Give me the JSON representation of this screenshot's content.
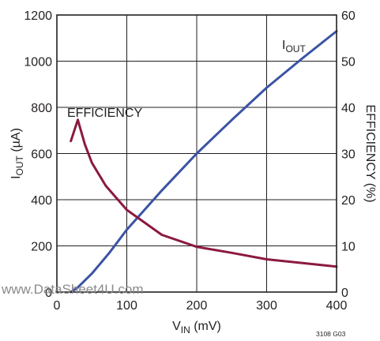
{
  "chart_data": {
    "type": "line",
    "xlabel": {
      "main": "V",
      "sub": "IN",
      "unit": " (mV)"
    },
    "ylabel_left": {
      "main": "I",
      "sub": "OUT",
      "unit": " (µA)"
    },
    "ylabel_right": "EFFICIENCY (%)",
    "xlim": [
      0,
      400
    ],
    "ylim_left": [
      0,
      1200
    ],
    "ylim_right": [
      0,
      60
    ],
    "x_ticks": [
      "0",
      "100",
      "200",
      "300",
      "400"
    ],
    "y_left_ticks": [
      "0",
      "200",
      "400",
      "600",
      "800",
      "1000",
      "1200"
    ],
    "y_right_ticks": [
      "0",
      "10",
      "20",
      "30",
      "40",
      "50",
      "60"
    ],
    "grid": true,
    "series": [
      {
        "name": "IOUT",
        "axis": "left",
        "color": "#3a53a4",
        "label": {
          "main": "I",
          "sub": "OUT"
        },
        "x": [
          20,
          30,
          50,
          75,
          100,
          150,
          200,
          250,
          300,
          350,
          400
        ],
        "y": [
          0,
          20,
          80,
          170,
          270,
          440,
          600,
          745,
          885,
          1010,
          1130
        ]
      },
      {
        "name": "EFFICIENCY",
        "axis": "right",
        "color": "#8b1a3e",
        "label": {
          "main": "EFFICIENCY"
        },
        "x": [
          20,
          30,
          40,
          50,
          70,
          100,
          150,
          200,
          250,
          300,
          350,
          400
        ],
        "y": [
          32.7,
          37.3,
          32,
          28,
          23,
          17.8,
          12.4,
          9.8,
          8.5,
          7.1,
          6.3,
          5.5
        ]
      }
    ]
  },
  "watermark": "www.DataSheet4U.com",
  "figure_id": "3108 G03"
}
